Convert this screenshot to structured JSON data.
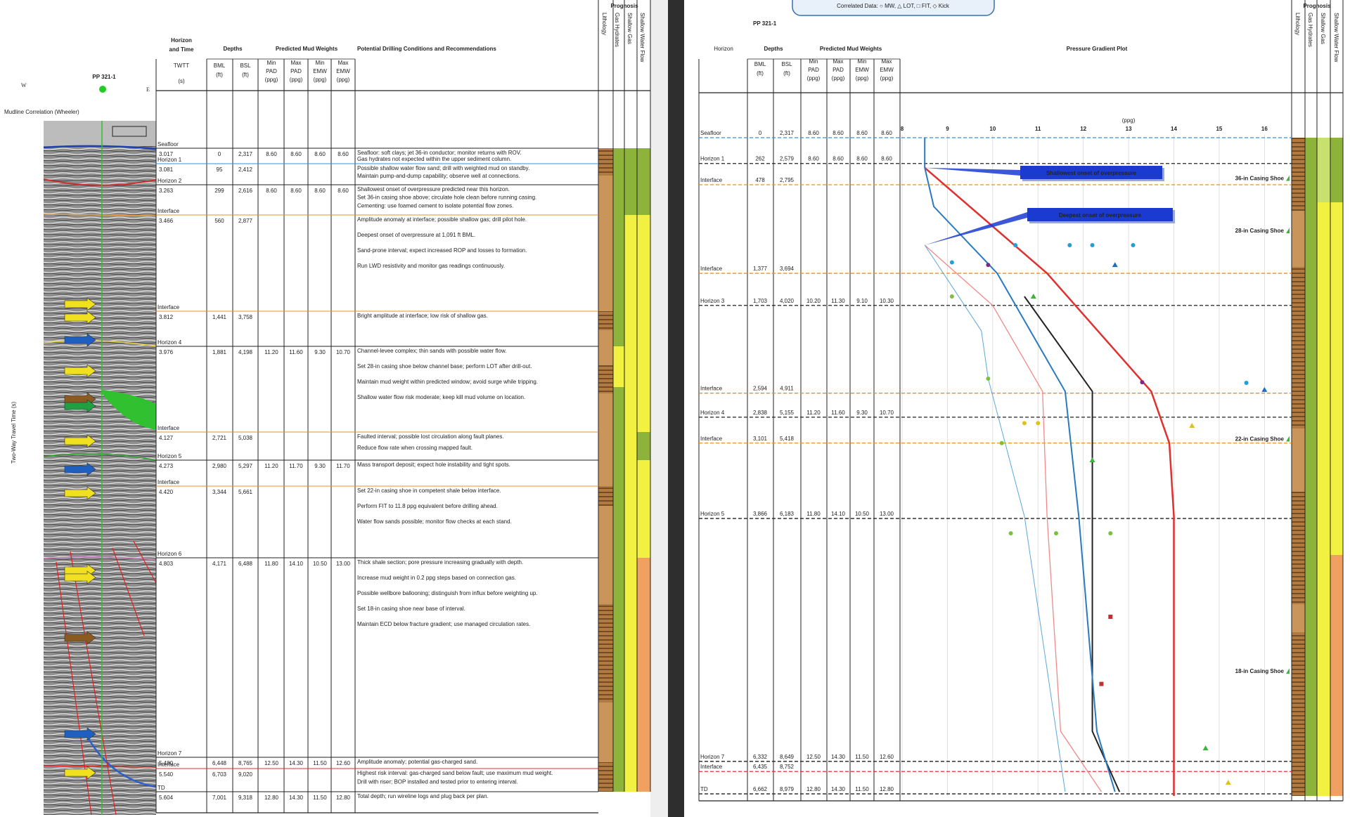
{
  "left_panel": {
    "direction_west": "W",
    "direction_east": "E",
    "well": "PP 321-1",
    "seismic_note": "Mudline Correlation (Wheeler)",
    "seismic_axis": "Two-Way Travel Time (s)",
    "header": {
      "horizon": [
        "Horizon",
        "and Time"
      ],
      "twtt": [
        "TWTT",
        "(s)"
      ],
      "depths": "Depths",
      "bml": [
        "BML",
        "(ft)"
      ],
      "bsl": [
        "BSL",
        "(ft)"
      ],
      "mud_weights": "Predicted Mud Weights",
      "mud_columns": [
        [
          "Min",
          "PAD",
          "(ppg)"
        ],
        [
          "Max",
          "PAD",
          "(ppg)"
        ],
        [
          "Min",
          "EMW",
          "(ppg)"
        ],
        [
          "Max",
          "EMW",
          "(ppg)"
        ]
      ],
      "conditions": "Potential Drilling Conditions and Recommendations",
      "prognosis": "Prognosis",
      "prognosis_columns": [
        "Lithology",
        "Gas Hydrates",
        "Shallow Gas",
        "Shallow Water Flow"
      ]
    },
    "rows": [
      {
        "color": "#333333",
        "horizon": "Seafloor",
        "twtt": "3.017",
        "bml": "0",
        "bsl": "2,317",
        "mud": [
          "8.60",
          "8.60",
          "8.60",
          "8.60"
        ],
        "notes": [
          "Seafloor: soft clays; jet 36-in conductor; monitor returns with ROV.",
          "Gas hydrates not expected within the upper sediment column."
        ]
      },
      {
        "color": "#3a8fd0",
        "horizon": "Horizon 1",
        "twtt": "3.081",
        "bml": "95",
        "bsl": "2,412",
        "mud": [],
        "notes": [
          "Possible shallow water flow sand; drill with weighted mud on standby.",
          "Maintain pump-and-dump capability; observe well at connections."
        ]
      },
      {
        "color": "#333333",
        "horizon": "Horizon 2",
        "twtt": "3.263",
        "bml": "299",
        "bsl": "2,616",
        "mud": [
          "8.60",
          "8.60",
          "8.60",
          "8.60"
        ],
        "notes": [
          "Shallowest onset of overpressure predicted near this horizon.",
          "Set 36-in casing shoe above; circulate hole clean before running casing.",
          "Cementing: use foamed cement to isolate potential flow zones."
        ]
      },
      {
        "color": "#e8902a",
        "horizon": "Interface",
        "twtt": "3.466",
        "bml": "560",
        "bsl": "2,877",
        "mud": [],
        "notes": [
          "Amplitude anomaly at interface; possible shallow gas; drill pilot hole.",
          "Deepest onset of overpressure at 1,091 ft BML.",
          "Sand-prone interval; expect increased ROP and losses to formation.",
          "Run LWD resistivity and monitor gas readings continuously."
        ]
      },
      {
        "color": "#e8902a",
        "horizon": "Interface",
        "twtt": "3.812",
        "bml": "1,441",
        "bsl": "3,758",
        "mud": [],
        "notes": [
          "Bright amplitude at interface; low risk of shallow gas."
        ]
      },
      {
        "color": "#333333",
        "horizon": "Horizon 4",
        "twtt": "3.976",
        "bml": "1,881",
        "bsl": "4,198",
        "mud": [
          "11.20",
          "11.60",
          "9.30",
          "10.70"
        ],
        "notes": [
          "Channel-levee complex; thin sands with possible water flow.",
          "Set 28-in casing shoe below channel base; perform LOT after drill-out.",
          "Maintain mud weight within predicted window; avoid surge while tripping.",
          "Shallow water flow risk moderate; keep kill mud volume on location."
        ]
      },
      {
        "color": "#e8902a",
        "horizon": "Interface",
        "twtt": "4.127",
        "bml": "2,721",
        "bsl": "5,038",
        "mud": [],
        "notes": [
          "Faulted interval; possible lost circulation along fault planes.",
          "Reduce flow rate when crossing mapped fault."
        ]
      },
      {
        "color": "#333333",
        "horizon": "Horizon 5",
        "twtt": "4.273",
        "bml": "2,980",
        "bsl": "5,297",
        "mud": [
          "11.20",
          "11.70",
          "9.30",
          "11.70"
        ],
        "notes": [
          "Mass transport deposit; expect hole instability and tight spots."
        ]
      },
      {
        "color": "#e8902a",
        "horizon": "Interface",
        "twtt": "4.420",
        "bml": "3,344",
        "bsl": "5,661",
        "mud": [],
        "notes": [
          "Set 22-in casing shoe in competent shale below interface.",
          "Perform FIT to 11.8 ppg equivalent before drilling ahead.",
          "Water flow sands possible; monitor flow checks at each stand."
        ]
      },
      {
        "color": "#333333",
        "horizon": "Horizon 6",
        "twtt": "4.803",
        "bml": "4,171",
        "bsl": "6,488",
        "mud": [
          "11.80",
          "14.10",
          "10.50",
          "13.00"
        ],
        "notes": [
          "Thick shale section; pore pressure increasing gradually with depth.",
          "Increase mud weight in 0.2 ppg steps based on connection gas.",
          "Possible wellbore ballooning; distinguish from influx before weighting up.",
          "Set 18-in casing shoe near base of interval.",
          "Maintain ECD below fracture gradient; use managed circulation rates."
        ]
      },
      {
        "color": "#333333",
        "horizon": "Horizon 7",
        "twtt": "5.480",
        "bml": "6,448",
        "bsl": "8,765",
        "mud": [
          "12.50",
          "14.30",
          "11.50",
          "12.60"
        ],
        "notes": [
          "Amplitude anomaly; potential gas-charged sand."
        ]
      },
      {
        "color": "#e03030",
        "horizon": "Interface",
        "twtt": "5.540",
        "bml": "6,703",
        "bsl": "9,020",
        "mud": [],
        "notes": [
          "Highest risk interval: gas-charged sand below fault; use maximum mud weight.",
          "Drill with riser; BOP installed and tested prior to entering interval."
        ]
      },
      {
        "color": "#333333",
        "horizon": "TD",
        "twtt": "5.604",
        "bml": "7,001",
        "bsl": "9,318",
        "mud": [
          "12.80",
          "14.30",
          "11.50",
          "12.80"
        ],
        "notes": [
          "Total depth; run wireline logs and plug back per plan."
        ]
      }
    ]
  },
  "right_panel": {
    "legend": "Correlated Data: ○ MW, △ LOT, □ FIT, ◇ Kick",
    "well": "PP 321-1",
    "header": {
      "horizon": "Horizon",
      "depths": "Depths",
      "bml": [
        "BML",
        "(ft)"
      ],
      "bsl": [
        "BSL",
        "(ft)"
      ],
      "mud_weights": "Predicted Mud Weights",
      "mud_columns": [
        [
          "Min",
          "PAD",
          "(ppg)"
        ],
        [
          "Max",
          "PAD",
          "(ppg)"
        ],
        [
          "Min",
          "EMW",
          "(ppg)"
        ],
        [
          "Max",
          "EMW",
          "(ppg)"
        ]
      ],
      "plot_title": "Pressure Gradient Plot",
      "prognosis": "Prognosis",
      "prognosis_columns": [
        "Lithology",
        "Gas Hydrates",
        "Shallow Gas",
        "Shallow Water Flow"
      ]
    },
    "rows": [
      {
        "horizon": "Seafloor",
        "bml": "0",
        "bsl": {
          "value": 2317,
          "label": "2,317"
        },
        "color": "#3a8fd0",
        "mud": [
          "8.60",
          "8.60",
          "8.60",
          "8.60"
        ]
      },
      {
        "horizon": "Horizon 1",
        "bml": "262",
        "bsl": {
          "value": 2579,
          "label": "2,579"
        },
        "color": "#222222",
        "mud": [
          "8.60",
          "8.60",
          "8.60",
          "8.60"
        ]
      },
      {
        "horizon": "Interface",
        "bml": "478",
        "bsl": {
          "value": 2795,
          "label": "2,795"
        },
        "color": "#e8902a",
        "mud": []
      },
      {
        "horizon": "Interface",
        "bml": "1,377",
        "bsl": {
          "value": 3694,
          "label": "3,694"
        },
        "color": "#e8902a",
        "mud": []
      },
      {
        "horizon": "Horizon 3",
        "bml": "1,703",
        "bsl": {
          "value": 4020,
          "label": "4,020"
        },
        "color": "#222222",
        "mud": [
          "10.20",
          "11.30",
          "9.10",
          "10.30"
        ]
      },
      {
        "horizon": "Interface",
        "bml": "2,594",
        "bsl": {
          "value": 4911,
          "label": "4,911"
        },
        "color": "#e8902a",
        "mud": []
      },
      {
        "horizon": "Horizon 4",
        "bml": "2,838",
        "bsl": {
          "value": 5155,
          "label": "5,155"
        },
        "color": "#222222",
        "mud": [
          "11.20",
          "11.60",
          "9.30",
          "10.70"
        ]
      },
      {
        "horizon": "Interface",
        "bml": "3,101",
        "bsl": {
          "value": 5418,
          "label": "5,418"
        },
        "color": "#e8902a",
        "mud": []
      },
      {
        "horizon": "Horizon 5",
        "bml": "3,866",
        "bsl": {
          "value": 6183,
          "label": "6,183"
        },
        "color": "#222222",
        "mud": [
          "11.80",
          "14.10",
          "10.50",
          "13.00"
        ]
      },
      {
        "horizon": "Horizon 7",
        "bml": "6,332",
        "bsl": {
          "value": 8649,
          "label": "8,649"
        },
        "color": "#222222",
        "mud": [
          "12.50",
          "14.30",
          "11.50",
          "12.60"
        ]
      },
      {
        "horizon": "Interface",
        "bml": "6,435",
        "bsl": {
          "value": 8752,
          "label": "8,752"
        },
        "color": "#e03030",
        "mud": []
      },
      {
        "horizon": "TD",
        "bml": "6,662",
        "bsl": {
          "value": 8979,
          "label": "8,979"
        },
        "color": "#222222",
        "mud": [
          "12.80",
          "14.30",
          "11.50",
          "12.80"
        ]
      }
    ],
    "pressure_plot": {
      "xlabel": "(ppg)",
      "xlim": [
        8,
        16.6
      ],
      "xticks": [
        8,
        9,
        10,
        11,
        12,
        13,
        14,
        15,
        16
      ],
      "ylim": [
        2317,
        9000
      ],
      "grid": true,
      "curves": [
        {
          "color": "#e03030",
          "width": 2.5,
          "ppg": [
            8.5,
            11.2,
            13.5,
            13.9,
            14.0,
            14.0
          ],
          "depth": [
            2622,
            3694,
            4893,
            5418,
            6160,
            9000
          ]
        },
        {
          "color": "#222222",
          "width": 2,
          "ppg": [
            10.7,
            12.2,
            12.2,
            12.8
          ],
          "depth": [
            3929,
            4893,
            8344,
            8958
          ]
        },
        {
          "color": "#2a7ac0",
          "width": 2,
          "ppg": [
            8.5,
            8.5,
            8.7,
            10.1,
            11.6,
            11.9,
            12.3,
            12.7
          ],
          "depth": [
            2317,
            2622,
            3016,
            3694,
            4893,
            6160,
            8344,
            8958
          ]
        },
        {
          "color": "#f08a8a",
          "width": 1.3,
          "ppg": [
            8.5,
            10.0,
            11.1,
            11.2,
            11.5,
            12.4
          ],
          "depth": [
            3408,
            4020,
            4893,
            6160,
            8344,
            8958
          ]
        },
        {
          "color": "#5aa8d8",
          "width": 1,
          "ppg": [
            8.5,
            9.75,
            9.9,
            10.7,
            11.6
          ],
          "depth": [
            3408,
            4278,
            4763,
            6160,
            8958
          ]
        }
      ],
      "points": [
        {
          "marker": "circle",
          "color": "#1ea0d8",
          "ppg": [
            10.5,
            11.7,
            12.2,
            13.1,
            9.1,
            15.6
          ],
          "depth": [
            3408,
            3408,
            3408,
            3408,
            3583,
            4806
          ]
        },
        {
          "marker": "triangle",
          "color": "#3cb43c",
          "ppg": [
            10.9,
            12.2,
            14.7
          ],
          "depth": [
            3929,
            5591,
            8516
          ]
        },
        {
          "marker": "circle",
          "color": "#7cc040",
          "ppg": [
            9.1,
            9.9,
            10.2,
            10.4,
            11.4,
            12.6
          ],
          "depth": [
            3929,
            4763,
            5418,
            6333,
            6333,
            6333
          ]
        },
        {
          "marker": "triangle",
          "color": "#1f6fc0",
          "ppg": [
            12.7,
            16.0
          ],
          "depth": [
            3609,
            4877
          ]
        },
        {
          "marker": "circle",
          "color": "#e0c020",
          "ppg": [
            10.7,
            11.0
          ],
          "depth": [
            5215,
            5215
          ]
        },
        {
          "marker": "triangle",
          "color": "#e0c020",
          "ppg": [
            14.4,
            15.2
          ],
          "depth": [
            5241,
            8865
          ]
        },
        {
          "marker": "square",
          "color": "#c03030",
          "ppg": [
            12.6,
            12.4
          ],
          "depth": [
            7181,
            7863
          ]
        },
        {
          "marker": "circle",
          "color": "#7a2a8a",
          "ppg": [
            9.9,
            13.3
          ],
          "depth": [
            3609,
            4800
          ]
        }
      ],
      "annotations": [
        {
          "text": "Shallowest onset of overpressure",
          "ppg": 8.5,
          "depth": 2622
        },
        {
          "text": "Deepest onset of overpressure",
          "ppg": 8.5,
          "depth": 3408
        }
      ],
      "casing_shoes": [
        {
          "text": "36-in Casing Shoe",
          "depth": 2727
        },
        {
          "text": "28-in Casing Shoe",
          "depth": 3259
        },
        {
          "text": "22-in Casing Shoe",
          "depth": 5373
        },
        {
          "text": "18-in Casing Shoe",
          "depth": 7731
        }
      ]
    }
  }
}
